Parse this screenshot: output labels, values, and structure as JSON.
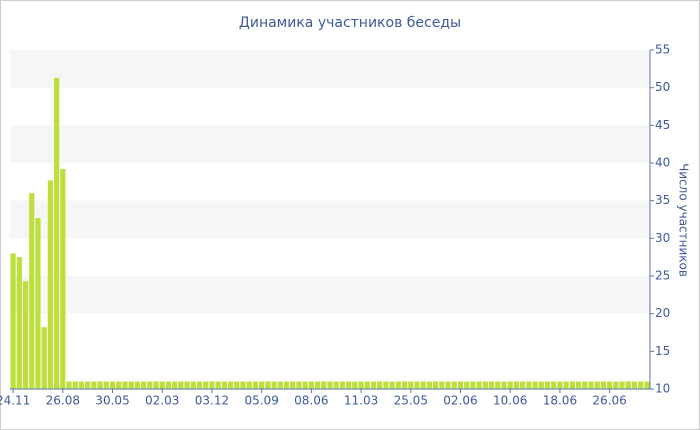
{
  "chart_data": {
    "type": "bar",
    "title": "Динамика участников беседы",
    "y_label": "Число участников",
    "categories": [
      "24.11",
      null,
      null,
      null,
      null,
      null,
      null,
      null,
      "26.08",
      null,
      null,
      null,
      null,
      null,
      null,
      null,
      "30.05",
      null,
      null,
      null,
      null,
      null,
      null,
      null,
      "02.03",
      null,
      null,
      null,
      null,
      null,
      null,
      null,
      "03.12",
      null,
      null,
      null,
      null,
      null,
      null,
      null,
      "05.09",
      null,
      null,
      null,
      null,
      null,
      null,
      null,
      "08.06",
      null,
      null,
      null,
      null,
      null,
      null,
      null,
      "11.03",
      null,
      null,
      null,
      null,
      null,
      null,
      null,
      "25.05",
      null,
      null,
      null,
      null,
      null,
      null,
      null,
      "02.06",
      null,
      null,
      null,
      null,
      null,
      null,
      null,
      "10.06",
      null,
      null,
      null,
      null,
      null,
      null,
      null,
      "18.06",
      null,
      null,
      null,
      null,
      null,
      null,
      null,
      "26.06",
      null,
      null,
      null,
      null,
      null,
      null
    ],
    "values": [
      28,
      27.5,
      24.3,
      36,
      32.7,
      18.2,
      37.7,
      51.3,
      39.2,
      11,
      11,
      11,
      11,
      11,
      11,
      11,
      11,
      11,
      11,
      11,
      11,
      11,
      11,
      11,
      11,
      11,
      11,
      11,
      11,
      11,
      11,
      11,
      11,
      11,
      11,
      11,
      11,
      11,
      11,
      11,
      11,
      11,
      11,
      11,
      11,
      11,
      11,
      11,
      11,
      11,
      11,
      11,
      11,
      11,
      11,
      11,
      11,
      11,
      11,
      11,
      11,
      11,
      11,
      11,
      11,
      11,
      11,
      11,
      11,
      11,
      11,
      11,
      11,
      11,
      11,
      11,
      11,
      11,
      11,
      11,
      11,
      11,
      11,
      11,
      11,
      11,
      11,
      11,
      11,
      11,
      11,
      11,
      11,
      11,
      11,
      11,
      11,
      11,
      11,
      11,
      11,
      11,
      11
    ],
    "color": "#bcdf3b",
    "ylim": [
      10,
      55
    ],
    "yticks": [
      10,
      15,
      20,
      25,
      30,
      35,
      40,
      45,
      50,
      55
    ],
    "grid": "bands"
  }
}
